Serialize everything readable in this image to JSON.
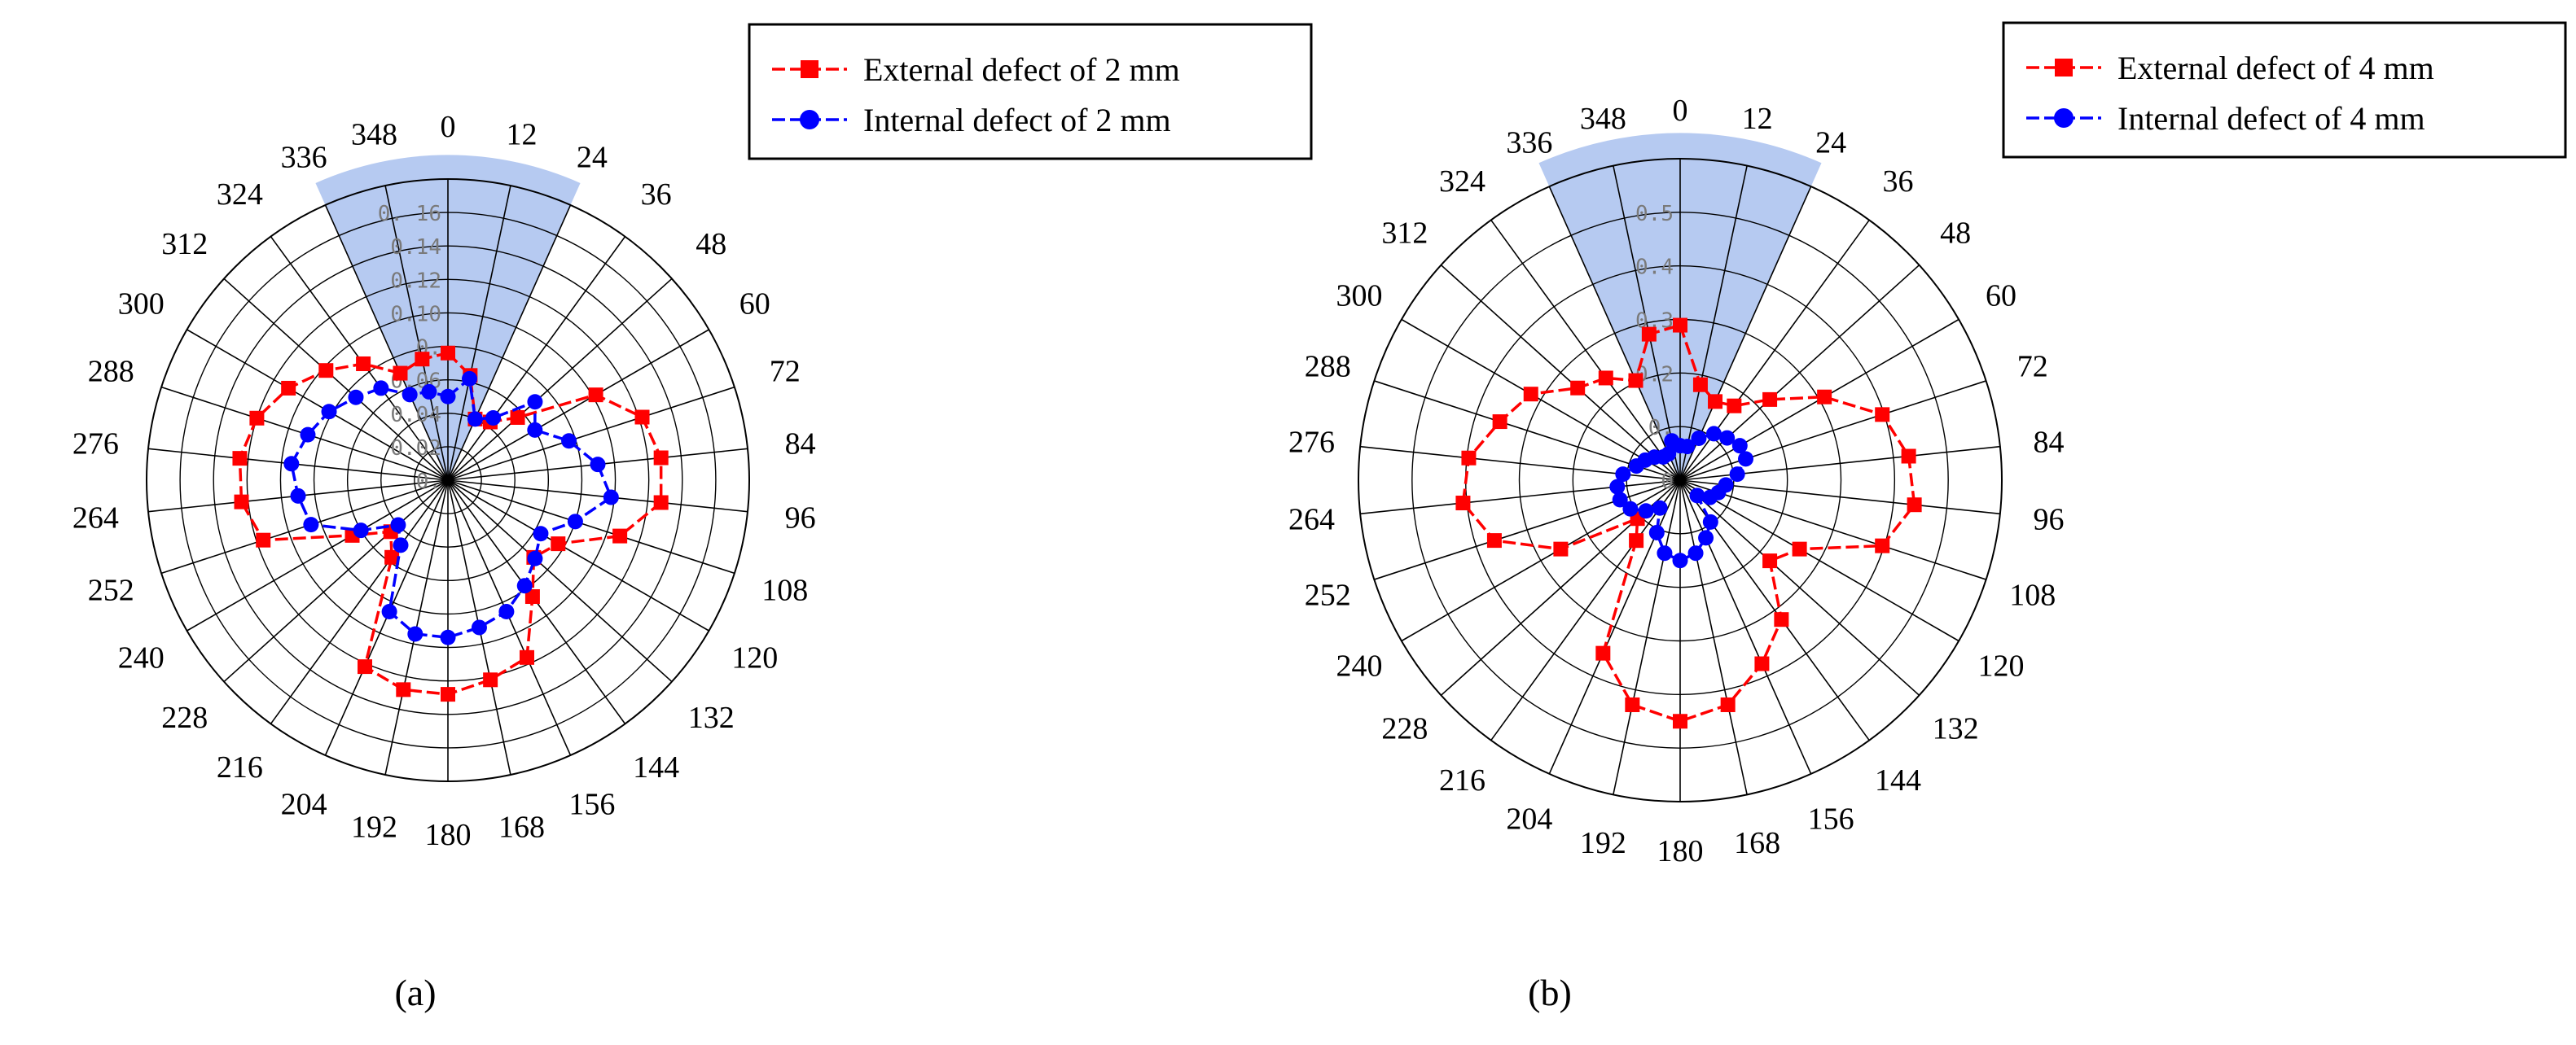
{
  "chart_data": [
    {
      "type": "radar",
      "panel_label": "(a)",
      "angles": [
        0,
        12,
        24,
        36,
        48,
        60,
        72,
        84,
        96,
        108,
        120,
        132,
        144,
        156,
        168,
        180,
        192,
        204,
        216,
        228,
        240,
        252,
        264,
        276,
        288,
        300,
        312,
        324,
        336,
        348
      ],
      "r_ticks": [
        "0",
        "0.02",
        "0.04",
        "0.06",
        "0.08",
        "0.10",
        "0.12",
        "0.14",
        "0.16"
      ],
      "tick_labels": [
        "0.",
        "0.02",
        "0.04",
        "0.06",
        "0.",
        "0.10",
        "0.12",
        "0.14",
        "0. 16"
      ],
      "r_max": 0.18,
      "highlight_sector": [
        -24,
        24
      ],
      "series": [
        {
          "name": "External defect of 2 mm",
          "color": "#ff0000",
          "marker": "square",
          "values": [
            0.076,
            0.064,
            0.04,
            0.043,
            0.056,
            0.102,
            0.122,
            0.128,
            0.128,
            0.108,
            0.076,
            0.069,
            0.086,
            0.116,
            0.122,
            0.128,
            0.128,
            0.122,
            0.057,
            0.046,
            0.066,
            0.116,
            0.124,
            0.125,
            0.12,
            0.11,
            0.098,
            0.086,
            0.07,
            0.074
          ]
        },
        {
          "name": "Internal defect of 2 mm",
          "color": "#0000ff",
          "marker": "circle",
          "values": [
            0.05,
            0.062,
            0.04,
            0.046,
            0.07,
            0.06,
            0.076,
            0.09,
            0.098,
            0.08,
            0.064,
            0.07,
            0.078,
            0.086,
            0.09,
            0.094,
            0.094,
            0.086,
            0.048,
            0.04,
            0.06,
            0.086,
            0.09,
            0.094,
            0.088,
            0.082,
            0.074,
            0.068,
            0.056,
            0.054
          ]
        }
      ]
    },
    {
      "type": "radar",
      "panel_label": "(b)",
      "angles": [
        0,
        12,
        24,
        36,
        48,
        60,
        72,
        84,
        96,
        108,
        120,
        132,
        144,
        156,
        168,
        180,
        192,
        204,
        216,
        228,
        240,
        252,
        264,
        276,
        288,
        300,
        312,
        324,
        336,
        348
      ],
      "r_ticks": [
        "0",
        "0.1",
        "0.2",
        "0.3",
        "0.4",
        "0.5"
      ],
      "tick_labels": [
        "0",
        "0.",
        "0.2",
        "0.3",
        "0.4",
        "0.5"
      ],
      "r_max": 0.56,
      "highlight_sector": [
        -24,
        24
      ],
      "series": [
        {
          "name": "External defect of 4 mm",
          "color": "#ff0000",
          "marker": "square",
          "values": [
            0.27,
            0.17,
            0.15,
            0.16,
            0.21,
            0.29,
            0.37,
            0.4,
            0.41,
            0.37,
            0.24,
            0.21,
            0.3,
            0.35,
            0.4,
            0.42,
            0.4,
            0.33,
            0.13,
            0.1,
            0.24,
            0.34,
            0.38,
            0.37,
            0.33,
            0.3,
            0.24,
            0.22,
            0.19,
            0.26
          ]
        },
        {
          "name": "Internal defect of 4 mm",
          "color": "#0000ff",
          "marker": "circle",
          "values": [
            0.06,
            0.06,
            0.08,
            0.1,
            0.11,
            0.12,
            0.12,
            0.1,
            0.08,
            0.07,
            0.06,
            0.04,
            0.09,
            0.11,
            0.13,
            0.14,
            0.13,
            0.1,
            0.06,
            0.08,
            0.1,
            0.11,
            0.11,
            0.1,
            0.08,
            0.07,
            0.06,
            0.05,
            0.05,
            0.07
          ]
        }
      ]
    }
  ]
}
